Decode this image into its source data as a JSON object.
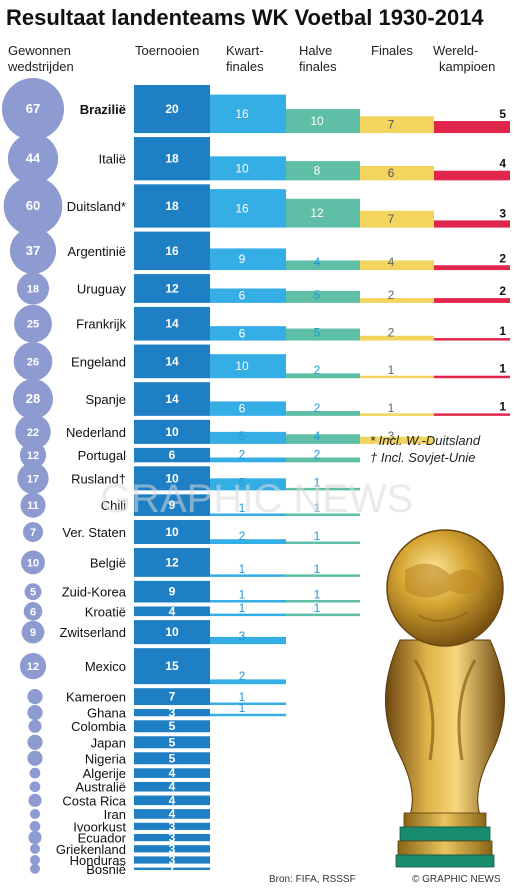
{
  "chart_data": {
    "type": "table",
    "title": "Resultaat landenteams WK Voetbal 1930-2014",
    "columns": {
      "wins": "Gewonnen wedstrijden",
      "tournaments": "Toernooien",
      "quarter": "Kwart-finales",
      "semi": "Halve finales",
      "finals": "Finales",
      "champions": "Wereld-kampioen"
    },
    "rows": [
      {
        "country": "Brazilië",
        "wins": 67,
        "tournaments": 20,
        "quarter": 16,
        "semi": 10,
        "finals": 7,
        "champions": 5
      },
      {
        "country": "Italië",
        "wins": 44,
        "tournaments": 18,
        "quarter": 10,
        "semi": 8,
        "finals": 6,
        "champions": 4
      },
      {
        "country": "Duitsland*",
        "wins": 60,
        "tournaments": 18,
        "quarter": 16,
        "semi": 12,
        "finals": 7,
        "champions": 3
      },
      {
        "country": "Argentinië",
        "wins": 37,
        "tournaments": 16,
        "quarter": 9,
        "semi": 4,
        "finals": 4,
        "champions": 2
      },
      {
        "country": "Uruguay",
        "wins": 18,
        "tournaments": 12,
        "quarter": 6,
        "semi": 5,
        "finals": 2,
        "champions": 2
      },
      {
        "country": "Frankrijk",
        "wins": 25,
        "tournaments": 14,
        "quarter": 6,
        "semi": 5,
        "finals": 2,
        "champions": 1
      },
      {
        "country": "Engeland",
        "wins": 26,
        "tournaments": 14,
        "quarter": 10,
        "semi": 2,
        "finals": 1,
        "champions": 1
      },
      {
        "country": "Spanje",
        "wins": 28,
        "tournaments": 14,
        "quarter": 6,
        "semi": 2,
        "finals": 1,
        "champions": 1
      },
      {
        "country": "Nederland",
        "wins": 22,
        "tournaments": 10,
        "quarter": 5,
        "semi": 4,
        "finals": 3,
        "champions": null
      },
      {
        "country": "Portugal",
        "wins": 12,
        "tournaments": 6,
        "quarter": 2,
        "semi": 2,
        "finals": null,
        "champions": null
      },
      {
        "country": "Rusland†",
        "wins": 17,
        "tournaments": 10,
        "quarter": 5,
        "semi": 1,
        "finals": null,
        "champions": null
      },
      {
        "country": "Chili",
        "wins": 11,
        "tournaments": 9,
        "quarter": 1,
        "semi": 1,
        "finals": null,
        "champions": null
      },
      {
        "country": "Ver. Staten",
        "wins": 7,
        "tournaments": 10,
        "quarter": 2,
        "semi": 1,
        "finals": null,
        "champions": null
      },
      {
        "country": "België",
        "wins": 10,
        "tournaments": 12,
        "quarter": 1,
        "semi": 1,
        "finals": null,
        "champions": null
      },
      {
        "country": "Zuid-Korea",
        "wins": 5,
        "tournaments": 9,
        "quarter": 1,
        "semi": 1,
        "finals": null,
        "champions": null
      },
      {
        "country": "Kroatië",
        "wins": 6,
        "tournaments": 4,
        "quarter": 1,
        "semi": 1,
        "finals": null,
        "champions": null
      },
      {
        "country": "Zwitserland",
        "wins": 9,
        "tournaments": 10,
        "quarter": 3,
        "semi": null,
        "finals": null,
        "champions": null
      },
      {
        "country": "Mexico",
        "wins": 12,
        "tournaments": 15,
        "quarter": 2,
        "semi": null,
        "finals": null,
        "champions": null
      },
      {
        "country": "Kameroen",
        "wins": 4,
        "tournaments": 7,
        "quarter": 1,
        "semi": null,
        "finals": null,
        "champions": null
      },
      {
        "country": "Ghana",
        "wins": 4,
        "tournaments": 3,
        "quarter": 1,
        "semi": null,
        "finals": null,
        "champions": null
      },
      {
        "country": "Colombia",
        "wins": 3,
        "tournaments": 5,
        "quarter": null,
        "semi": null,
        "finals": null,
        "champions": null
      },
      {
        "country": "Japan",
        "wins": 4,
        "tournaments": 5,
        "quarter": null,
        "semi": null,
        "finals": null,
        "champions": null
      },
      {
        "country": "Nigeria",
        "wins": 4,
        "tournaments": 5,
        "quarter": null,
        "semi": null,
        "finals": null,
        "champions": null
      },
      {
        "country": "Algerije",
        "wins": 2,
        "tournaments": 4,
        "quarter": null,
        "semi": null,
        "finals": null,
        "champions": null
      },
      {
        "country": "Australië",
        "wins": 2,
        "tournaments": 4,
        "quarter": null,
        "semi": null,
        "finals": null,
        "champions": null
      },
      {
        "country": "Costa Rica",
        "wins": 3,
        "tournaments": 4,
        "quarter": null,
        "semi": null,
        "finals": null,
        "champions": null
      },
      {
        "country": "Iran",
        "wins": 1,
        "tournaments": 4,
        "quarter": null,
        "semi": null,
        "finals": null,
        "champions": null
      },
      {
        "country": "Ivoorkust",
        "wins": 2,
        "tournaments": 3,
        "quarter": null,
        "semi": null,
        "finals": null,
        "champions": null
      },
      {
        "country": "Ecuador",
        "wins": 3,
        "tournaments": 3,
        "quarter": null,
        "semi": null,
        "finals": null,
        "champions": null
      },
      {
        "country": "Griekenland",
        "wins": 1,
        "tournaments": 3,
        "quarter": null,
        "semi": null,
        "finals": null,
        "champions": null
      },
      {
        "country": "Honduras",
        "wins": 0,
        "tournaments": 3,
        "quarter": null,
        "semi": null,
        "finals": null,
        "champions": null
      },
      {
        "country": "Bosnië",
        "wins": 0,
        "tournaments": 1,
        "quarter": null,
        "semi": null,
        "finals": null,
        "champions": null
      }
    ]
  },
  "headers": {
    "wins": [
      "Gewonnen",
      "wedstrijden"
    ],
    "tournaments": [
      "Toernooien"
    ],
    "quarter": [
      "Kwart-",
      "finales"
    ],
    "semi": [
      "Halve",
      "finales"
    ],
    "finals": [
      "Finales"
    ],
    "champions": [
      "Wereld-",
      "kampioen"
    ]
  },
  "notes": [
    "* Incl. W.-Duitsland",
    "† Incl. Sovjet-Unie"
  ],
  "source": "Bron: FIFA, RSSSF",
  "credit": "© GRAPHIC NEWS",
  "watermark": "GRAPHIC NEWS",
  "colors": {
    "wins_circle": "#8e9bd1",
    "tournaments": "#1e7fc4",
    "quarter": "#35aee6",
    "semi": "#5fbfa6",
    "finals": "#f3d45e",
    "champions": "#e0264d",
    "value_blue": "#1e9ad6",
    "value_grey": "#666666"
  }
}
